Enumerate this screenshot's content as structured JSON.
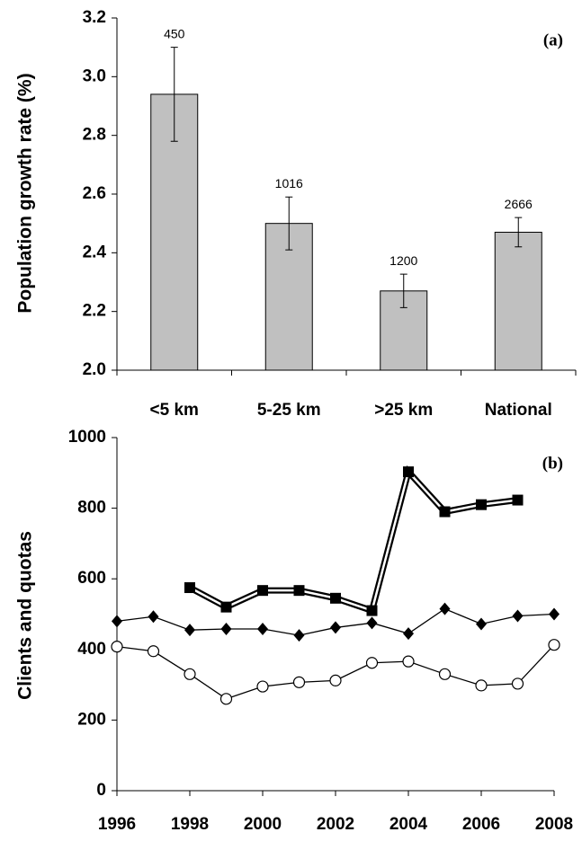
{
  "chart_data": [
    {
      "type": "bar",
      "panel_label": "(a)",
      "y_label": "Population growth rate (%)",
      "categories": [
        "<5 km",
        "5-25 km",
        ">25 km",
        "National"
      ],
      "values": [
        2.94,
        2.5,
        2.27,
        2.47
      ],
      "errors": [
        0.16,
        0.09,
        0.057,
        0.05
      ],
      "sample_sizes": [
        450,
        1016,
        1200,
        2666
      ],
      "color": "#c0c0c0",
      "ylim": [
        2.0,
        3.2
      ],
      "yticks": [
        {
          "value": 2.0,
          "label": "2.0"
        },
        {
          "value": 2.2,
          "label": "2.2"
        },
        {
          "value": 2.4,
          "label": "2.4"
        },
        {
          "value": 2.6,
          "label": "2.6"
        },
        {
          "value": 2.8,
          "label": "2.8"
        },
        {
          "value": 3.0,
          "label": "3.0"
        },
        {
          "value": 3.2,
          "label": "3.2"
        }
      ]
    },
    {
      "type": "line",
      "panel_label": "(b)",
      "y_label": "Clients and quotas",
      "x": [
        1996,
        1997,
        1998,
        1999,
        2000,
        2001,
        2002,
        2003,
        2004,
        2005,
        2006,
        2007,
        2008
      ],
      "series": [
        {
          "color": "#000000",
          "marker": "square",
          "style": "double",
          "values": [
            null,
            null,
            575,
            520,
            567,
            567,
            545,
            510,
            903,
            790,
            810,
            823,
            null
          ]
        },
        {
          "color": "#000000",
          "marker": "diamond",
          "style": "single",
          "values": [
            480,
            493,
            455,
            458,
            458,
            440,
            462,
            475,
            445,
            515,
            472,
            495,
            500
          ]
        },
        {
          "color": "#000000",
          "marker": "circle",
          "style": "single",
          "values": [
            408,
            395,
            330,
            260,
            295,
            307,
            312,
            362,
            366,
            330,
            298,
            303,
            413
          ]
        }
      ],
      "xlim": [
        1996,
        2008
      ],
      "xticks": [
        1996,
        1998,
        2000,
        2002,
        2004,
        2006,
        2008
      ],
      "ylim": [
        0,
        1000
      ],
      "yticks": [
        0,
        200,
        400,
        600,
        800,
        1000
      ]
    }
  ]
}
